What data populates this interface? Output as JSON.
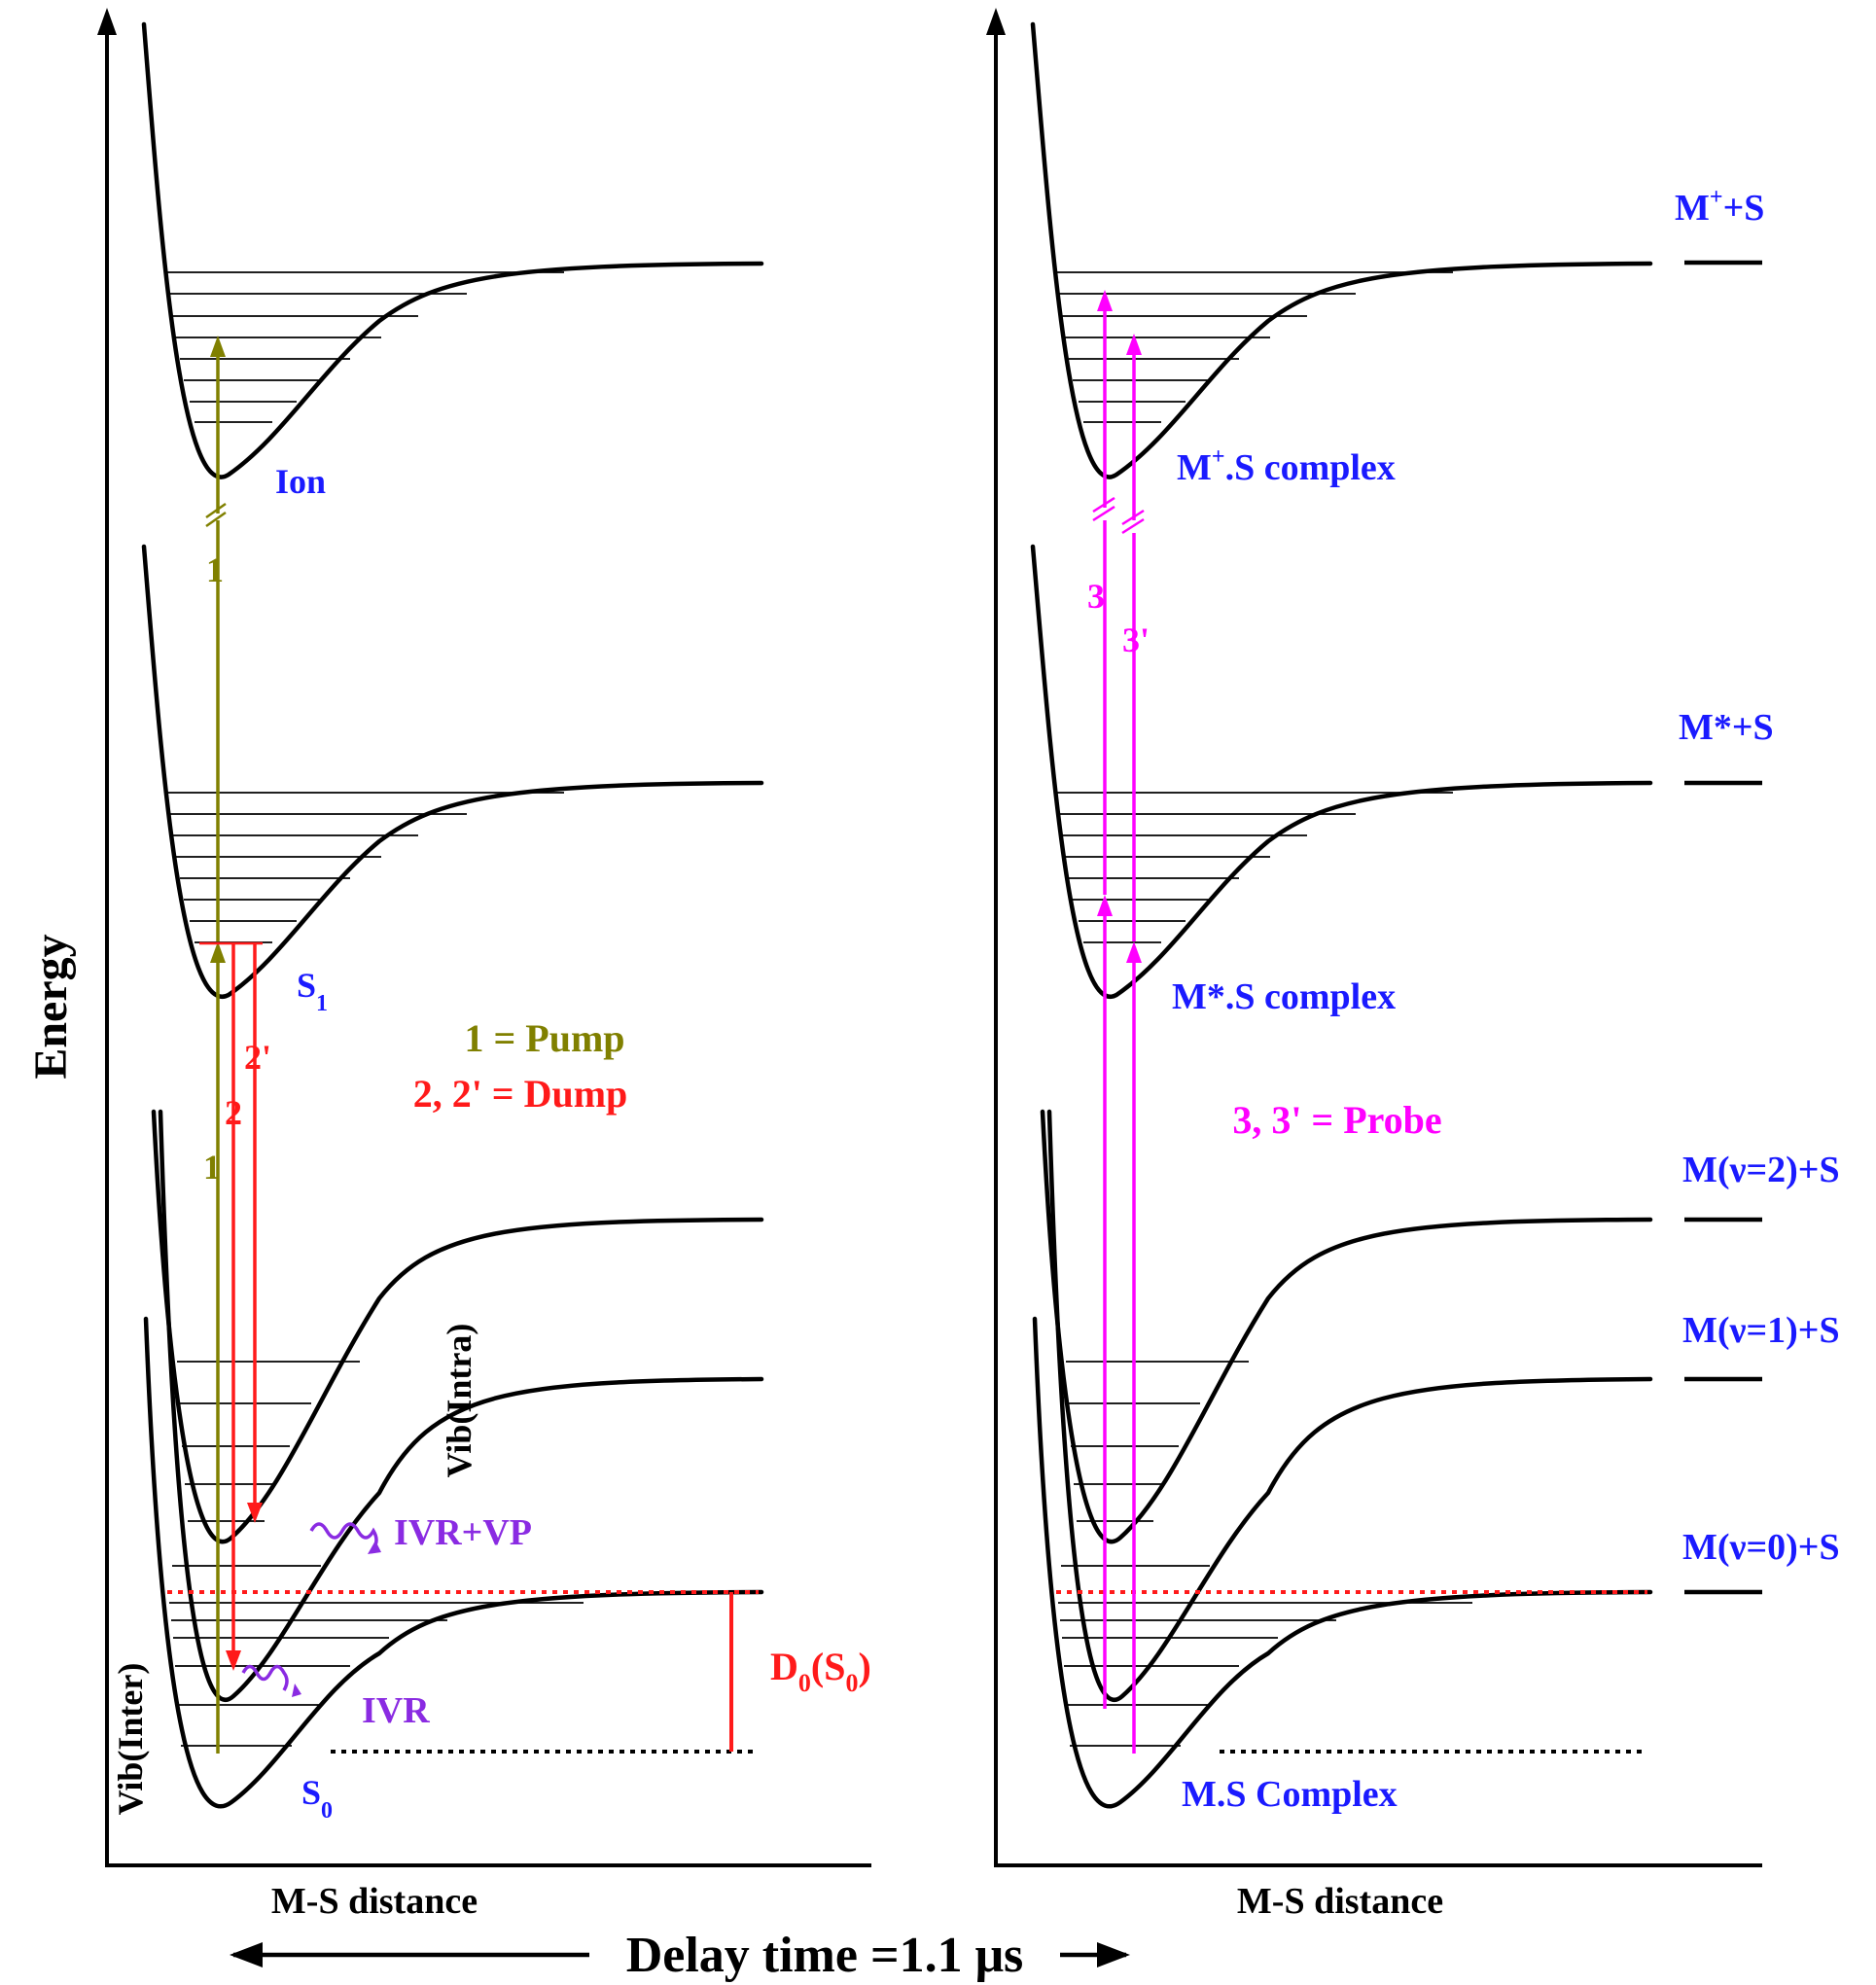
{
  "axes": {
    "y_label": "Energy",
    "left_x_label": "M-S distance",
    "right_x_label": "M-S distance",
    "delay_label": "Delay time =1.1 μs"
  },
  "left_panel": {
    "ion_label": "Ion",
    "s1_label": "S",
    "s1_sub": "1",
    "s0_label": "S",
    "s0_sub": "0",
    "pump_top_label": "1",
    "pump_bottom_label": "1",
    "dump_label": "2",
    "dump_prime_label": "2'",
    "legend_pump": "1 = Pump",
    "legend_dump": "2, 2' = Dump",
    "vib_intra": "Vib(Intra)",
    "vib_inter": "Vib(Inter)",
    "ivr_vp": "IVR+VP",
    "ivr": "IVR",
    "d0_main": "D",
    "d0_sub": "0",
    "d0_open": "(S",
    "d0_sub2": "0",
    "d0_close": ")"
  },
  "right_panel": {
    "ion_complex_pre": "M",
    "ion_complex_sup": "+",
    "ion_complex_post": ".S complex",
    "excited_complex": "M*.S complex",
    "ground_complex": "M.S Complex",
    "probe_label": "3",
    "probe_prime_label": "3'",
    "legend_probe": "3, 3' = Probe",
    "asymptote_ion_pre": "M",
    "asymptote_ion_sup": "+",
    "asymptote_ion_post": "+S",
    "asymptote_excited": "M*+S",
    "asymptote_v2": "M(ν=2)+S",
    "asymptote_v1": "M(ν=1)+S",
    "asymptote_v0": "M(ν=0)+S"
  },
  "colors": {
    "pump": "#808000",
    "dump": "#ff1a1a",
    "probe": "#ff00ff",
    "ivr": "#8a2be2",
    "state_label": "#1a1aff",
    "black": "#000000"
  }
}
